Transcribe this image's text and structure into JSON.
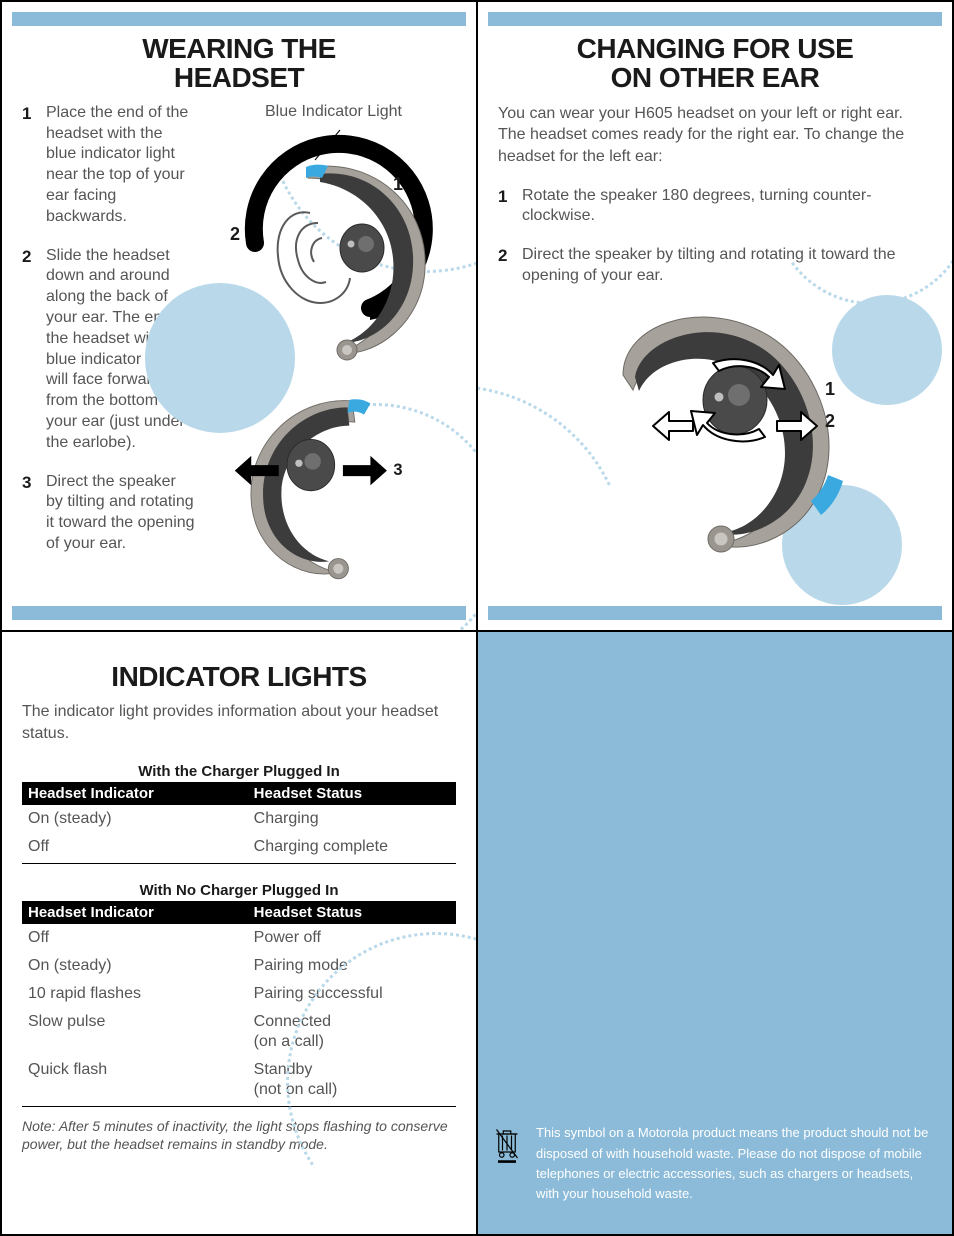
{
  "colors": {
    "accent_bar": "#8bbbd8",
    "disc": "#b9d9ea",
    "dotted": "#b9d9ea",
    "body_text": "#555555",
    "heading_text": "#1a1a1a",
    "table_header_bg": "#000000",
    "table_header_fg": "#ffffff",
    "panel4_bg": "#8bbbd8",
    "panel4_text": "#ffffff",
    "headset_body": "#9a958f",
    "headset_inner": "#3c3c3c",
    "indicator_blue": "#39a9e0"
  },
  "fonts": {
    "title_size_pt": 21,
    "body_size_pt": 12,
    "table_size_pt": 12,
    "note_size_pt": 10.5
  },
  "panel1": {
    "title_line1": "WEARING THE",
    "title_line2": "HEADSET",
    "callout_label": "Blue Indicator Light",
    "steps": [
      "Place the end of the headset with the blue indicator light near the top of your ear facing backwards.",
      "Slide the headset down and around along the back of your ear. The end of the headset with the blue indicator light will face forward from the bottom of your ear (just under the earlobe).",
      "Direct the speaker by tilting and rotating it toward the opening of your ear."
    ],
    "figure_labels": {
      "one": "1",
      "two": "2",
      "three": "3"
    }
  },
  "panel2": {
    "title_line1": "CHANGING FOR USE",
    "title_line2": "ON OTHER EAR",
    "intro": "You can wear your H605 headset on your left or right ear. The headset comes ready for the right ear. To change the headset for the left ear:",
    "steps": [
      "Rotate the speaker 180 degrees, turning counter-clockwise.",
      "Direct the speaker by tilting and rotating it toward the opening of your ear."
    ],
    "figure_labels": {
      "one": "1",
      "two": "2"
    }
  },
  "panel3": {
    "title": "INDICATOR LIGHTS",
    "intro": "The indicator light provides information about your headset status.",
    "table1": {
      "caption": "With the Charger Plugged In",
      "columns": [
        "Headset Indicator",
        "Headset Status"
      ],
      "col_widths_pct": [
        52,
        48
      ],
      "rows": [
        [
          "On (steady)",
          "Charging"
        ],
        [
          "Off",
          "Charging complete"
        ]
      ]
    },
    "table2": {
      "caption": "With No Charger Plugged In",
      "columns": [
        "Headset Indicator",
        "Headset Status"
      ],
      "col_widths_pct": [
        52,
        48
      ],
      "rows": [
        [
          "Off",
          "Power off"
        ],
        [
          "On (steady)",
          "Pairing mode"
        ],
        [
          "10 rapid flashes",
          "Pairing successful"
        ],
        [
          "Slow pulse",
          "Connected\n(on a call)"
        ],
        [
          "Quick flash",
          "Standby\n(not on call)"
        ]
      ]
    },
    "note": "Note: After 5 minutes of inactivity, the light stops flashing to conserve power, but the headset remains in standby mode."
  },
  "panel4": {
    "weee_text": "This symbol on a Motorola product means the product should not be disposed of with household waste. Please do not dispose of mobile telephones or electric accessories, such as chargers or headsets, with your household waste."
  }
}
